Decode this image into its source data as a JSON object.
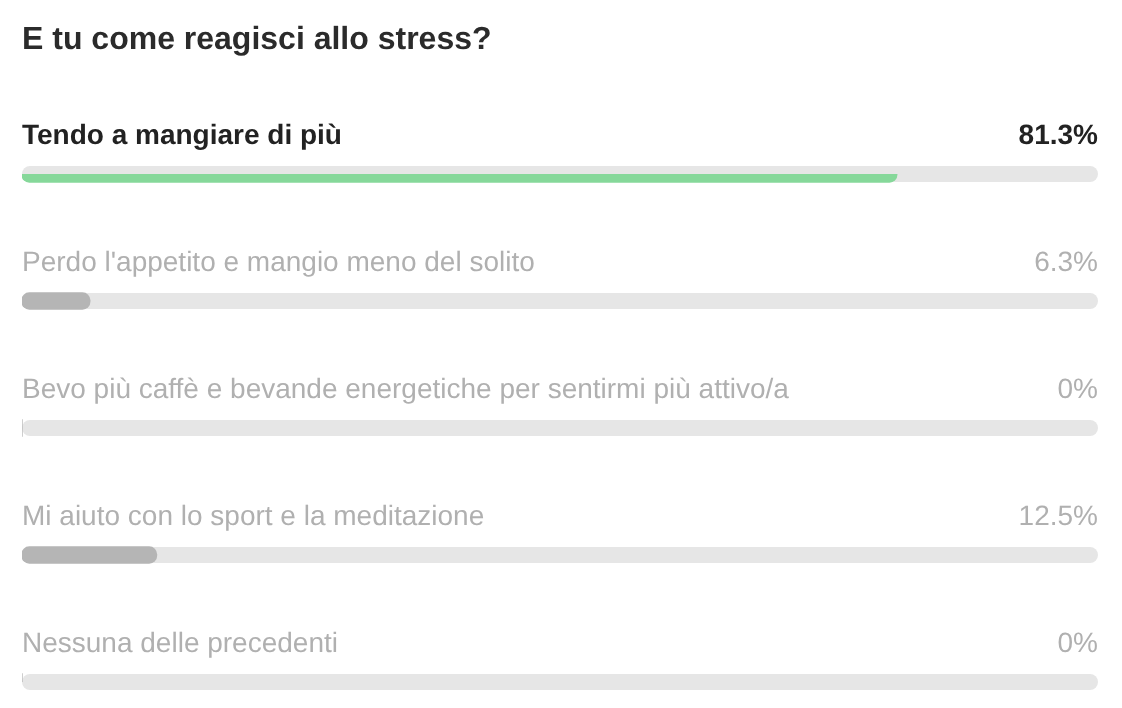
{
  "chart_data": {
    "type": "bar",
    "orientation": "horizontal",
    "title": "E tu come reagisci allo stress?",
    "categories": [
      "Tendo a mangiare di più",
      "Perdo l'appetito e mangio meno del solito",
      "Bevo più caffè e bevande energetiche per sentirmi più attivo/a",
      "Mi aiuto con lo sport e la meditazione",
      "Nessuna delle precedenti"
    ],
    "values": [
      81.3,
      6.3,
      0,
      12.5,
      0
    ],
    "value_labels": [
      "81.3%",
      "6.3%",
      "0%",
      "12.5%",
      "0%"
    ],
    "colors": [
      "#86d89a",
      "#b5b5b5",
      "#b5b5b5",
      "#b5b5b5",
      "#b5b5b5"
    ],
    "xlim": [
      0,
      100
    ]
  }
}
